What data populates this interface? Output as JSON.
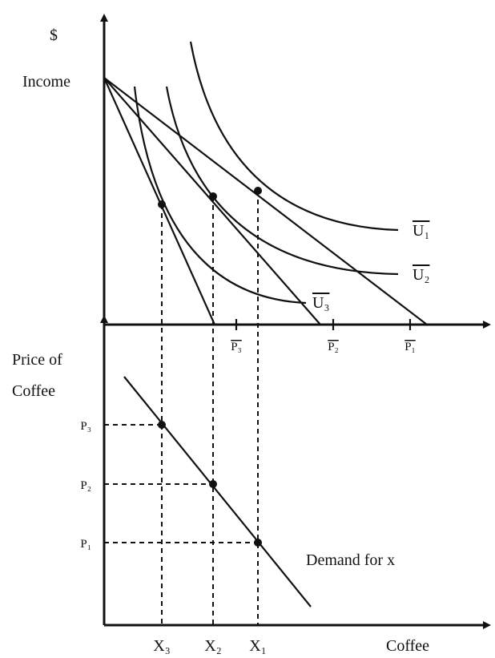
{
  "top_panel": {
    "y_label": "$",
    "income_label": "Income",
    "curves": [
      "U₁",
      "U₂",
      "U₃"
    ],
    "intercepts": [
      "P₃",
      "P₂",
      "P₁"
    ]
  },
  "bottom_panel": {
    "y_label": [
      "Price of",
      "Coffee"
    ],
    "prices": [
      "P₃",
      "P₂",
      "P₁"
    ],
    "demand_label": "Demand for x",
    "quantities": [
      "X₃",
      "X₂",
      "X₁"
    ],
    "x_label": "Coffee"
  }
}
